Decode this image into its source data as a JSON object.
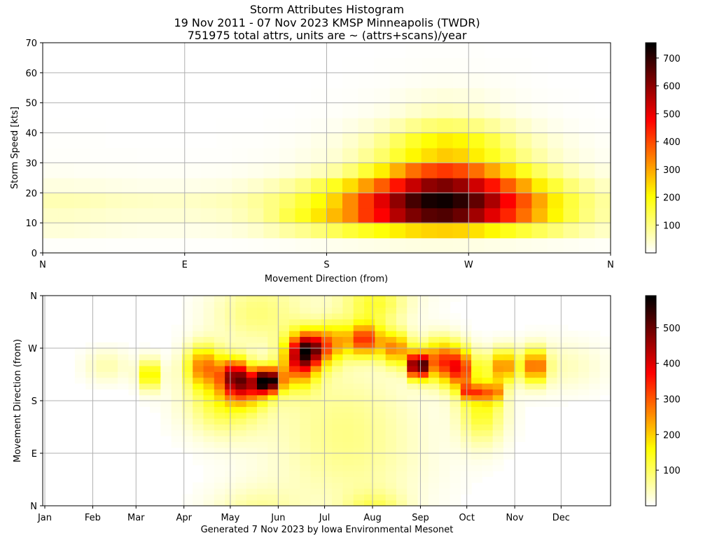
{
  "title_lines": [
    "Storm Attributes Histogram",
    "19 Nov 2011 - 07 Nov 2023 KMSP Minneapolis (TWDR)",
    "751975 total attrs, units are ~ (attrs+scans)/year"
  ],
  "footer": "Generated 7 Nov 2023 by Iowa Environmental Mesonet",
  "colors": {
    "grid": "#b0b0b0",
    "colormap": "hot_r"
  },
  "chart_data": [
    {
      "type": "heatmap",
      "xlabel": "Movement Direction (from)",
      "ylabel": "Storm Speed [kts]",
      "x_ticks": [
        "N",
        "E",
        "S",
        "W",
        "N"
      ],
      "xlim": [
        0,
        360
      ],
      "y_ticks": [
        0,
        10,
        20,
        30,
        40,
        50,
        60,
        70
      ],
      "ylim": [
        0,
        70
      ],
      "x_bin_deg": 10,
      "y_bin_kts": 5,
      "colorbar_ticks": [
        100,
        200,
        300,
        400,
        500,
        600,
        700
      ],
      "colorbar_range": [
        0,
        755
      ],
      "values_by_direction": [
        [
          4,
          30,
          45,
          60,
          25,
          10,
          4,
          2,
          1,
          0,
          0,
          0,
          0,
          0
        ],
        [
          4,
          30,
          45,
          60,
          25,
          10,
          4,
          2,
          1,
          0,
          0,
          0,
          0,
          0
        ],
        [
          4,
          28,
          42,
          58,
          23,
          9,
          4,
          2,
          1,
          0,
          0,
          0,
          0,
          0
        ],
        [
          4,
          25,
          40,
          55,
          22,
          9,
          3,
          2,
          1,
          0,
          0,
          0,
          0,
          0
        ],
        [
          3,
          22,
          37,
          50,
          20,
          8,
          3,
          1,
          0,
          0,
          0,
          0,
          0,
          0
        ],
        [
          3,
          20,
          35,
          48,
          18,
          8,
          3,
          1,
          0,
          0,
          0,
          0,
          0,
          0
        ],
        [
          3,
          18,
          34,
          46,
          17,
          7,
          2,
          1,
          0,
          0,
          0,
          0,
          0,
          0
        ],
        [
          3,
          18,
          34,
          45,
          17,
          7,
          2,
          1,
          0,
          0,
          0,
          0,
          0,
          0
        ],
        [
          3,
          18,
          34,
          45,
          17,
          7,
          2,
          1,
          0,
          0,
          0,
          0,
          0,
          0
        ],
        [
          3,
          18,
          35,
          46,
          18,
          7,
          2,
          1,
          0,
          0,
          0,
          0,
          0,
          0
        ],
        [
          3,
          20,
          38,
          50,
          20,
          8,
          3,
          1,
          0,
          0,
          0,
          0,
          0,
          0
        ],
        [
          3,
          22,
          42,
          55,
          22,
          9,
          3,
          2,
          1,
          0,
          0,
          0,
          0,
          0
        ],
        [
          4,
          30,
          55,
          65,
          30,
          12,
          5,
          3,
          1,
          0,
          0,
          0,
          0,
          0
        ],
        [
          5,
          40,
          70,
          80,
          40,
          15,
          6,
          3,
          1,
          0,
          0,
          0,
          0,
          0
        ],
        [
          6,
          55,
          100,
          100,
          55,
          20,
          8,
          5,
          2,
          1,
          0,
          0,
          0,
          0
        ],
        [
          8,
          75,
          145,
          125,
          75,
          28,
          12,
          8,
          3,
          1,
          1,
          0,
          0,
          0
        ],
        [
          10,
          90,
          180,
          160,
          100,
          40,
          18,
          12,
          5,
          2,
          1,
          0,
          0,
          0
        ],
        [
          12,
          110,
          230,
          200,
          140,
          55,
          25,
          18,
          8,
          3,
          2,
          1,
          0,
          0
        ],
        [
          14,
          135,
          280,
          250,
          180,
          75,
          35,
          25,
          12,
          5,
          3,
          1,
          0,
          0
        ],
        [
          16,
          160,
          330,
          330,
          240,
          110,
          55,
          40,
          20,
          8,
          4,
          2,
          1,
          0
        ],
        [
          18,
          180,
          420,
          420,
          310,
          160,
          85,
          60,
          30,
          12,
          6,
          3,
          1,
          0
        ],
        [
          20,
          200,
          480,
          510,
          380,
          220,
          120,
          90,
          45,
          18,
          9,
          4,
          2,
          1
        ],
        [
          22,
          220,
          560,
          600,
          460,
          290,
          165,
          130,
          65,
          28,
          14,
          6,
          3,
          1
        ],
        [
          24,
          240,
          620,
          680,
          540,
          360,
          210,
          170,
          90,
          40,
          20,
          9,
          4,
          2
        ],
        [
          25,
          250,
          660,
          730,
          600,
          400,
          240,
          200,
          110,
          50,
          25,
          11,
          5,
          2
        ],
        [
          25,
          255,
          670,
          740,
          620,
          420,
          260,
          220,
          120,
          55,
          28,
          12,
          5,
          2
        ],
        [
          24,
          250,
          640,
          710,
          590,
          400,
          250,
          210,
          115,
          52,
          26,
          11,
          5,
          2
        ],
        [
          22,
          235,
          580,
          650,
          530,
          360,
          220,
          185,
          100,
          45,
          22,
          10,
          4,
          2
        ],
        [
          20,
          210,
          510,
          570,
          460,
          300,
          180,
          150,
          80,
          35,
          17,
          8,
          3,
          1
        ],
        [
          18,
          185,
          440,
          480,
          380,
          240,
          140,
          110,
          58,
          25,
          12,
          6,
          2,
          1
        ],
        [
          16,
          160,
          360,
          390,
          300,
          180,
          100,
          75,
          40,
          16,
          8,
          4,
          2,
          1
        ],
        [
          14,
          135,
          280,
          300,
          220,
          130,
          70,
          50,
          25,
          10,
          5,
          2,
          1,
          0
        ],
        [
          12,
          110,
          210,
          220,
          160,
          90,
          45,
          32,
          15,
          6,
          3,
          1,
          0,
          0
        ],
        [
          10,
          85,
          150,
          155,
          110,
          60,
          28,
          20,
          9,
          3,
          2,
          1,
          0,
          0
        ],
        [
          8,
          65,
          105,
          110,
          75,
          38,
          18,
          12,
          5,
          2,
          1,
          0,
          0,
          0
        ],
        [
          6,
          48,
          75,
          80,
          50,
          25,
          11,
          7,
          3,
          1,
          0,
          0,
          0,
          0
        ]
      ]
    },
    {
      "type": "heatmap",
      "xlabel": "Generated 7 Nov 2023 by Iowa Environmental Mesonet",
      "ylabel": "Movement Direction (from)",
      "x_ticks": [
        "Jan",
        "Feb",
        "Mar",
        "Apr",
        "May",
        "Jun",
        "Jul",
        "Aug",
        "Sep",
        "Oct",
        "Nov",
        "Dec"
      ],
      "y_ticks": [
        "N",
        "E",
        "S",
        "W",
        "N"
      ],
      "ylim": [
        0,
        360
      ],
      "y_bin_deg": 10,
      "x_bin": "week",
      "colorbar_ticks": [
        100,
        200,
        300,
        400,
        500
      ],
      "colorbar_range": [
        0,
        590
      ],
      "blobs": [
        {
          "week": 10,
          "dir": 225,
          "value": 200,
          "w": 0.7,
          "h": 18
        },
        {
          "week": 15,
          "dir": 240,
          "value": 250,
          "w": 1.2,
          "h": 25
        },
        {
          "week": 18,
          "dir": 225,
          "value": 350,
          "w": 1.0,
          "h": 20
        },
        {
          "week": 21,
          "dir": 215,
          "value": 560,
          "w": 0.9,
          "h": 15
        },
        {
          "week": 19,
          "dir": 200,
          "value": 200,
          "w": 1.5,
          "h": 20
        },
        {
          "week": 24,
          "dir": 250,
          "value": 350,
          "w": 1.2,
          "h": 30
        },
        {
          "week": 25,
          "dir": 270,
          "value": 330,
          "w": 1.0,
          "h": 20
        },
        {
          "week": 27,
          "dir": 280,
          "value": 200,
          "w": 1.0,
          "h": 25
        },
        {
          "week": 30,
          "dir": 285,
          "value": 330,
          "w": 1.2,
          "h": 20
        },
        {
          "week": 33,
          "dir": 270,
          "value": 250,
          "w": 1.0,
          "h": 20
        },
        {
          "week": 35,
          "dir": 240,
          "value": 560,
          "w": 0.6,
          "h": 15
        },
        {
          "week": 37,
          "dir": 250,
          "value": 280,
          "w": 1.2,
          "h": 25
        },
        {
          "week": 39,
          "dir": 235,
          "value": 300,
          "w": 1.0,
          "h": 25
        },
        {
          "week": 40,
          "dir": 195,
          "value": 280,
          "w": 0.6,
          "h": 10
        },
        {
          "week": 42,
          "dir": 195,
          "value": 250,
          "w": 0.6,
          "h": 12
        },
        {
          "week": 43,
          "dir": 240,
          "value": 250,
          "w": 1.0,
          "h": 20
        },
        {
          "week": 46,
          "dir": 240,
          "value": 300,
          "w": 0.7,
          "h": 20
        },
        {
          "week": 17,
          "dir": 180,
          "value": 130,
          "w": 2.5,
          "h": 40
        },
        {
          "week": 28,
          "dir": 160,
          "value": 60,
          "w": 5.0,
          "h": 70
        },
        {
          "week": 41,
          "dir": 165,
          "value": 140,
          "w": 1.5,
          "h": 40
        },
        {
          "week": 29,
          "dir": 60,
          "value": 40,
          "w": 5.0,
          "h": 60
        },
        {
          "week": 20,
          "dir": 330,
          "value": 80,
          "w": 3.0,
          "h": 40
        },
        {
          "week": 31,
          "dir": 345,
          "value": 110,
          "w": 2.0,
          "h": 25
        },
        {
          "week": 48,
          "dir": 240,
          "value": 45,
          "w": 3.0,
          "h": 30
        },
        {
          "week": 6,
          "dir": 240,
          "value": 50,
          "w": 1.5,
          "h": 20
        }
      ]
    }
  ]
}
